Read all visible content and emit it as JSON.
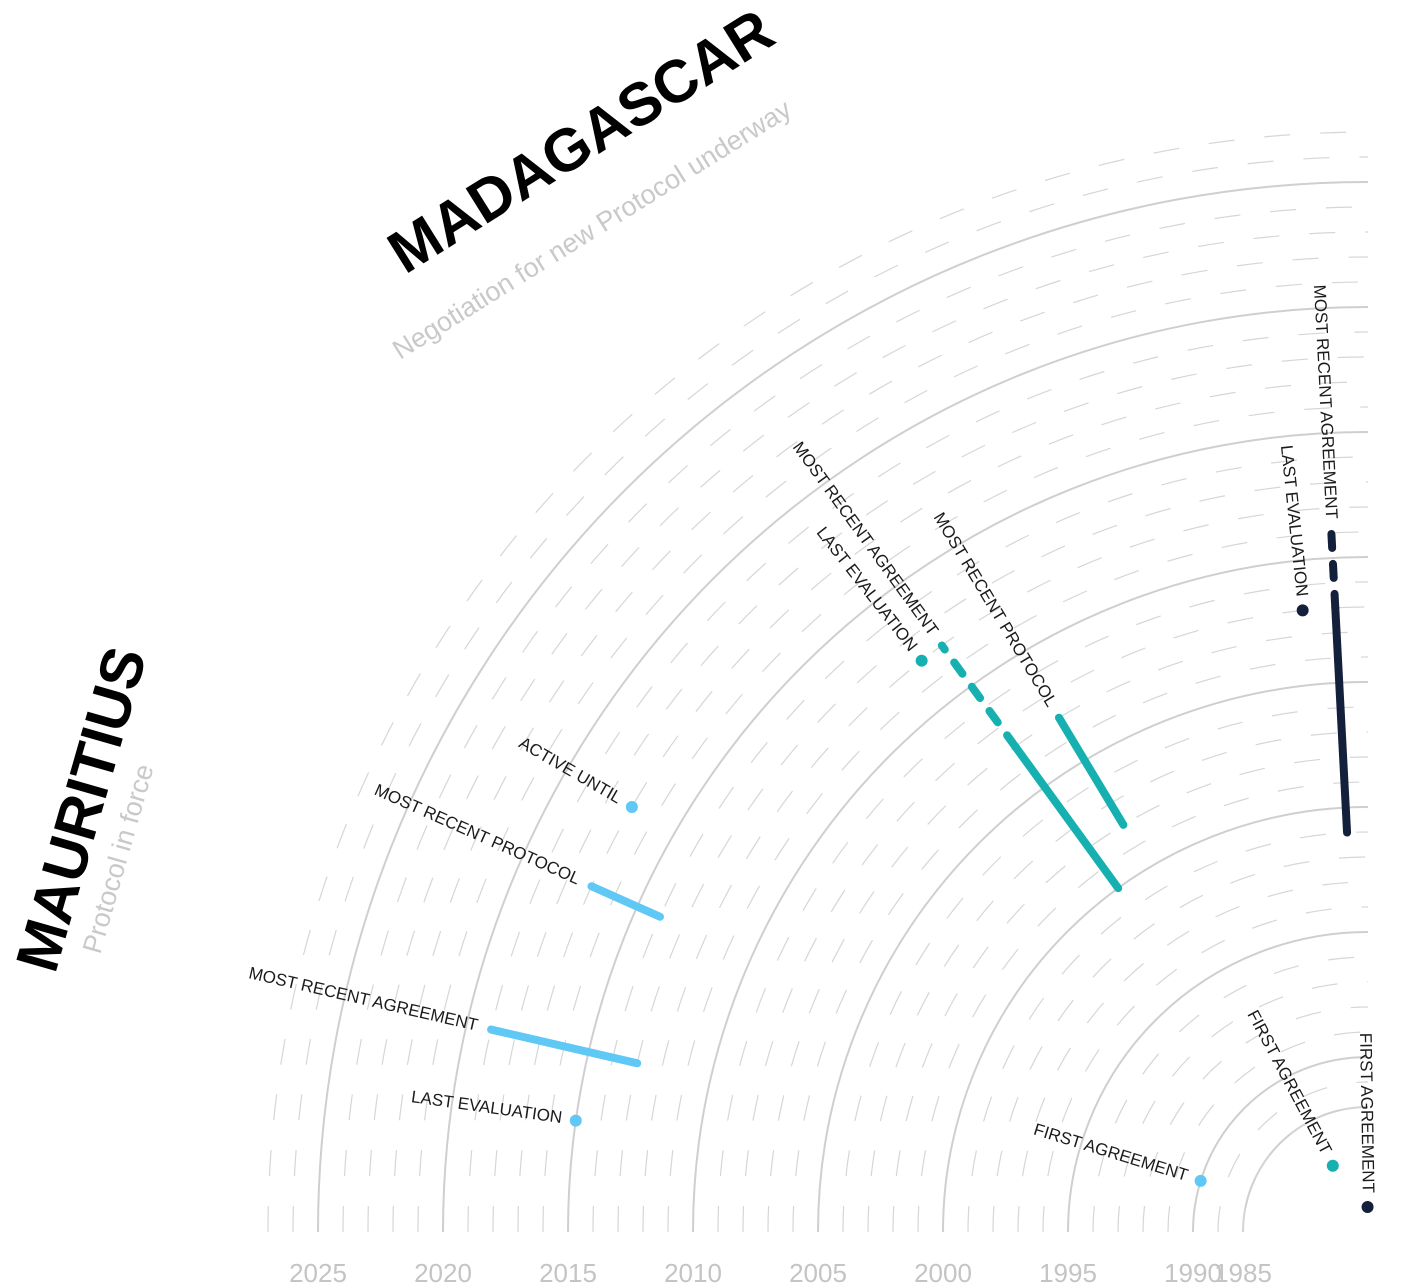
{
  "chart_data": {
    "type": "radial-timeline",
    "axis": {
      "ticks": [
        "2025",
        "2020",
        "2015",
        "2010",
        "2005",
        "2000",
        "1995",
        "1990",
        "1985"
      ],
      "range": [
        1983,
        2025
      ]
    },
    "countries": [
      {
        "name": "MADAGASCAR",
        "status": "Negotiation for new Protocol underway",
        "color": "#16b0b0",
        "marks": [
          {
            "label": "FIRST AGREEMENT",
            "kind": "point",
            "year": 1986
          },
          {
            "label": "MOST RECENT AGREEMENT",
            "kind": "range",
            "start": 2000,
            "end": 2007,
            "style": "solid"
          },
          {
            "label": "MOST RECENT AGREEMENT",
            "kind": "range",
            "start": 2007,
            "end": 2012,
            "style": "dashed"
          },
          {
            "label": "MOST RECENT PROTOCOL",
            "kind": "range",
            "start": 2002,
            "end": 2007,
            "style": "solid"
          },
          {
            "label": "LAST EVALUATION",
            "kind": "point",
            "year": 2012
          }
        ]
      },
      {
        "name": "MAURITIUS",
        "status": "Protocol in force",
        "color": "#5fc8f5",
        "marks": [
          {
            "label": "FIRST AGREEMENT",
            "kind": "point",
            "year": 1990
          },
          {
            "label": "MOST RECENT AGREEMENT",
            "kind": "range",
            "start": 2013,
            "end": 2019,
            "style": "solid"
          },
          {
            "label": "MOST RECENT PROTOCOL",
            "kind": "range",
            "start": 2014,
            "end": 2017,
            "style": "solid"
          },
          {
            "label": "ACTIVE UNTIL",
            "kind": "point",
            "year": 2017
          },
          {
            "label": "LAST EVALUATION",
            "kind": "point",
            "year": 2015
          }
        ]
      },
      {
        "name": "",
        "status": "",
        "color": "#13203b",
        "marks": [
          {
            "label": "FIRST AGREEMENT",
            "kind": "point",
            "year": 1984
          },
          {
            "label": "MOST RECENT AGREEMENT",
            "kind": "range",
            "start": 1999,
            "end": 2008,
            "style": "solid"
          },
          {
            "label": "MOST RECENT AGREEMENT",
            "kind": "range",
            "start": 2008,
            "end": 2011,
            "style": "dashed"
          },
          {
            "label": "LAST EVALUATION",
            "kind": "point",
            "year": 2008
          }
        ]
      }
    ]
  }
}
